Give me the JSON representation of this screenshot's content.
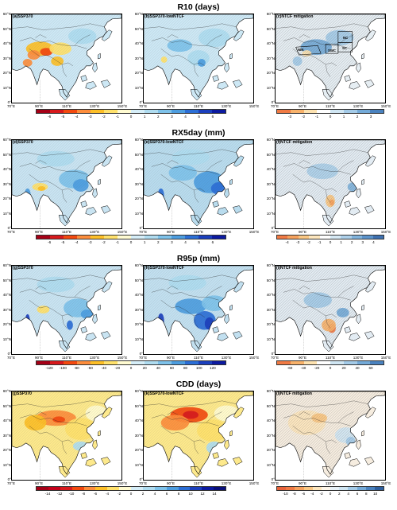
{
  "sections": [
    {
      "title": "R10 (days)",
      "panels": [
        "(a)SSP370",
        "(b)SSP370-lowNTCF",
        "(c)NTCF mitigation"
      ],
      "colorbar1": {
        "ticks": [
          "-6",
          "-5",
          "-4",
          "-3",
          "-2",
          "-1",
          "0",
          "1",
          "2",
          "3",
          "4",
          "5",
          "6"
        ],
        "colors": [
          "#a50016",
          "#d7191c",
          "#f3490f",
          "#fd8d3c",
          "#fdbf27",
          "#ffe16b",
          "#fffbd1",
          "#d6eef8",
          "#afdcf0",
          "#7ec2ea",
          "#4d9ddf",
          "#2b6ed6",
          "#1b3fbd",
          "#0c1aa0"
        ]
      },
      "colorbar2": {
        "ticks": [
          "-3",
          "-2",
          "-1",
          "0",
          "1",
          "2",
          "3"
        ],
        "colors": [
          "#f07a44",
          "#f8b26b",
          "#fde2b0",
          "#ffffff",
          "#d0e6f3",
          "#a4cbe8",
          "#74aad8",
          "#4a82bf"
        ]
      },
      "regions": [
        "NIN",
        "SWC",
        "NC",
        "SC"
      ]
    },
    {
      "title": "RX5day (mm)",
      "panels": [
        "(d)SSP370",
        "(e)SSP370-lowNTCF",
        "(f)NTCF mitigation"
      ],
      "colorbar1": {
        "ticks": [
          "-6",
          "-5",
          "-4",
          "-3",
          "-2",
          "-1",
          "0",
          "1",
          "2",
          "3",
          "4",
          "5",
          "6"
        ],
        "colors": [
          "#a50016",
          "#d7191c",
          "#f3490f",
          "#fd8d3c",
          "#fdbf27",
          "#ffe16b",
          "#fffbd1",
          "#d6eef8",
          "#afdcf0",
          "#7ec2ea",
          "#4d9ddf",
          "#2b6ed6",
          "#1b3fbd",
          "#0c1aa0"
        ]
      },
      "colorbar2": {
        "ticks": [
          "-4",
          "-3",
          "-2",
          "-1",
          "0",
          "1",
          "2",
          "3",
          "4"
        ],
        "colors": [
          "#f07a44",
          "#f6a25e",
          "#fac783",
          "#fde6bd",
          "#ffffff",
          "#d6e9f4",
          "#add0ea",
          "#80b3dc",
          "#5b93cb",
          "#3e70b0"
        ]
      }
    },
    {
      "title": "R95p (mm)",
      "panels": [
        "(g)SSP370",
        "(h)SSP370-lowNTCF",
        "(i)NTCF mitigation"
      ],
      "colorbar1": {
        "ticks": [
          "-120",
          "-100",
          "-80",
          "-60",
          "-40",
          "-20",
          "0",
          "20",
          "40",
          "60",
          "80",
          "100",
          "120"
        ],
        "colors": [
          "#a50016",
          "#d7191c",
          "#f3490f",
          "#fd8d3c",
          "#fdbf27",
          "#ffe16b",
          "#fffbd1",
          "#d6eef8",
          "#afdcf0",
          "#7ec2ea",
          "#4d9ddf",
          "#2b6ed6",
          "#1b3fbd",
          "#0c1aa0"
        ]
      },
      "colorbar2": {
        "ticks": [
          "-60",
          "-40",
          "-20",
          "0",
          "20",
          "40",
          "60"
        ],
        "colors": [
          "#f07a44",
          "#f8b26b",
          "#fde2b0",
          "#ffffff",
          "#d0e6f3",
          "#a4cbe8",
          "#74aad8",
          "#4a82bf"
        ]
      }
    },
    {
      "title": "CDD (days)",
      "panels": [
        "(j)SSP370",
        "(k)SSP370-lowNTCF",
        "(l)NTCF mitigation"
      ],
      "colorbar1": {
        "ticks": [
          "-14",
          "-12",
          "-10",
          "-8",
          "-6",
          "-4",
          "-2",
          "0",
          "2",
          "4",
          "6",
          "8",
          "10",
          "12",
          "14"
        ],
        "colors": [
          "#a50016",
          "#c4001a",
          "#d7191c",
          "#f3490f",
          "#fd8d3c",
          "#fdbf27",
          "#ffe16b",
          "#fffbd1",
          "#d6eef8",
          "#afdcf0",
          "#7ec2ea",
          "#4d9ddf",
          "#2b6ed6",
          "#1b3fbd",
          "#0c1aa0",
          "#080e7a"
        ]
      },
      "colorbar2": {
        "ticks": [
          "-10",
          "-8",
          "-6",
          "-4",
          "-2",
          "0",
          "2",
          "4",
          "6",
          "8",
          "10"
        ],
        "colors": [
          "#e8623a",
          "#f07a44",
          "#f6a25e",
          "#fac783",
          "#fde6bd",
          "#fff7ea",
          "#e8f2f9",
          "#d0e6f3",
          "#a4cbe8",
          "#74aad8",
          "#4a82bf",
          "#2e5f9e"
        ]
      }
    }
  ],
  "axis": {
    "lat_labels": [
      "60°N",
      "50°N",
      "40°N",
      "30°N",
      "20°N",
      "10°N",
      "0°"
    ],
    "lon_labels": [
      "70°E",
      "90°E",
      "110°E",
      "130°E",
      "150°E"
    ]
  },
  "palette": {
    "ocean": "#ffffff",
    "coast": "#000000"
  }
}
